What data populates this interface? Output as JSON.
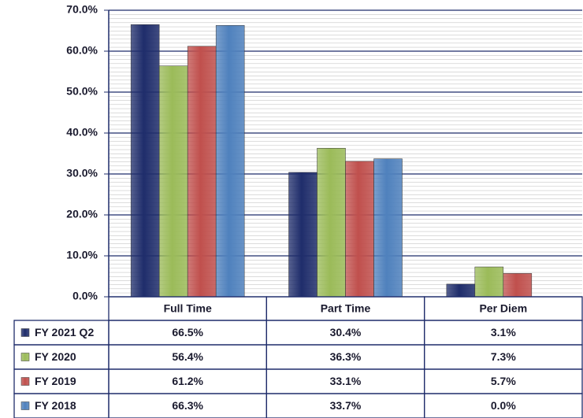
{
  "chart_data": {
    "type": "bar",
    "categories": [
      "Full Time",
      "Part Time",
      "Per Diem"
    ],
    "series": [
      {
        "name": "FY 2021 Q2",
        "color": "#1f2d6b",
        "values": [
          66.5,
          30.4,
          3.1
        ],
        "value_labels": [
          "66.5%",
          "30.4%",
          "3.1%"
        ]
      },
      {
        "name": "FY 2020",
        "color": "#9bbb59",
        "values": [
          56.4,
          36.3,
          7.3
        ],
        "value_labels": [
          "56.4%",
          "36.3%",
          "7.3%"
        ]
      },
      {
        "name": "FY 2019",
        "color": "#c0504d",
        "values": [
          61.2,
          33.1,
          5.7
        ],
        "value_labels": [
          "61.2%",
          "33.1%",
          "5.7%"
        ]
      },
      {
        "name": "FY 2018",
        "color": "#4f81bd",
        "values": [
          66.3,
          33.7,
          0.0
        ],
        "value_labels": [
          "66.3%",
          "33.7%",
          "0.0%"
        ]
      }
    ],
    "ylim": [
      0,
      70
    ],
    "yticks": [
      {
        "value": 0,
        "label": "0.0%"
      },
      {
        "value": 10,
        "label": "10.0%"
      },
      {
        "value": 20,
        "label": "20.0%"
      },
      {
        "value": 30,
        "label": "30.0%"
      },
      {
        "value": 40,
        "label": "40.0%"
      },
      {
        "value": 50,
        "label": "50.0%"
      },
      {
        "value": 60,
        "label": "60.0%"
      },
      {
        "value": 70,
        "label": "70.0%"
      }
    ],
    "grid": true
  }
}
